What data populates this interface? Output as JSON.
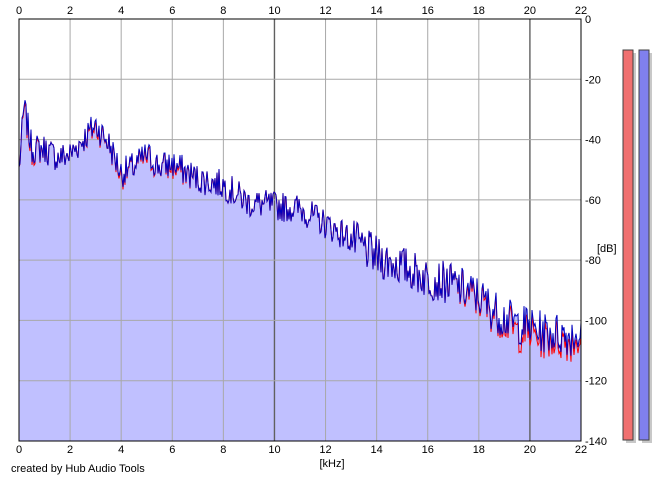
{
  "chart_data": {
    "type": "area",
    "xlabel": "[kHz]",
    "ylabel": "[dB]",
    "xlim": [
      0,
      22
    ],
    "ylim": [
      -140,
      0
    ],
    "x_ticks": [
      0,
      2,
      4,
      6,
      8,
      10,
      12,
      14,
      16,
      18,
      20,
      22
    ],
    "y_ticks": [
      0,
      -20,
      -40,
      -60,
      -80,
      -100,
      -120,
      -140
    ],
    "y_tick_labels": [
      "0",
      "-20",
      "-40",
      "-60",
      "-80",
      "-100",
      "-120",
      "-140"
    ],
    "grid": true,
    "series": [
      {
        "color": "#ff0000",
        "x": [
          0,
          0.2,
          0.5,
          1,
          1.5,
          2,
          2.5,
          3,
          3.5,
          4,
          4.5,
          5,
          5.5,
          6,
          7,
          8,
          9,
          10,
          11,
          12,
          13,
          14,
          15,
          16,
          17,
          17.5,
          18,
          18.5,
          19,
          19.5,
          20,
          20.5,
          21,
          21.5,
          22
        ],
        "values": [
          -50,
          -30,
          -44,
          -43,
          -46,
          -45,
          -40,
          -36,
          -41,
          -52,
          -49,
          -46,
          -49,
          -49,
          -53,
          -55,
          -61,
          -62,
          -63,
          -68,
          -73,
          -79,
          -82,
          -86,
          -88,
          -91,
          -93,
          -97,
          -100,
          -104,
          -104,
          -106,
          -106,
          -107,
          -106
        ]
      },
      {
        "color": "#0000c0",
        "x": [
          0,
          0.2,
          0.5,
          1,
          1.5,
          2,
          2.5,
          3,
          3.5,
          4,
          4.5,
          5,
          5.5,
          6,
          7,
          8,
          9,
          10,
          11,
          12,
          13,
          14,
          15,
          16,
          17,
          17.5,
          18,
          18.5,
          19,
          19.5,
          20,
          20.5,
          21,
          21.5,
          22
        ],
        "values": [
          -50,
          -29,
          -43,
          -43,
          -46,
          -45,
          -40,
          -35,
          -41,
          -51,
          -49,
          -45,
          -49,
          -48,
          -53,
          -55,
          -61,
          -62,
          -63,
          -68,
          -73,
          -79,
          -82,
          -86,
          -88,
          -90,
          -92,
          -96,
          -99,
          -101,
          -102,
          -104,
          -104,
          -105,
          -104
        ]
      }
    ],
    "level_meters": [
      {
        "color": "#f07070",
        "level": 1.0
      },
      {
        "color": "#8080ee",
        "level": 1.0
      }
    ]
  },
  "footer": {
    "credit": "created by Hub Audio Tools"
  }
}
